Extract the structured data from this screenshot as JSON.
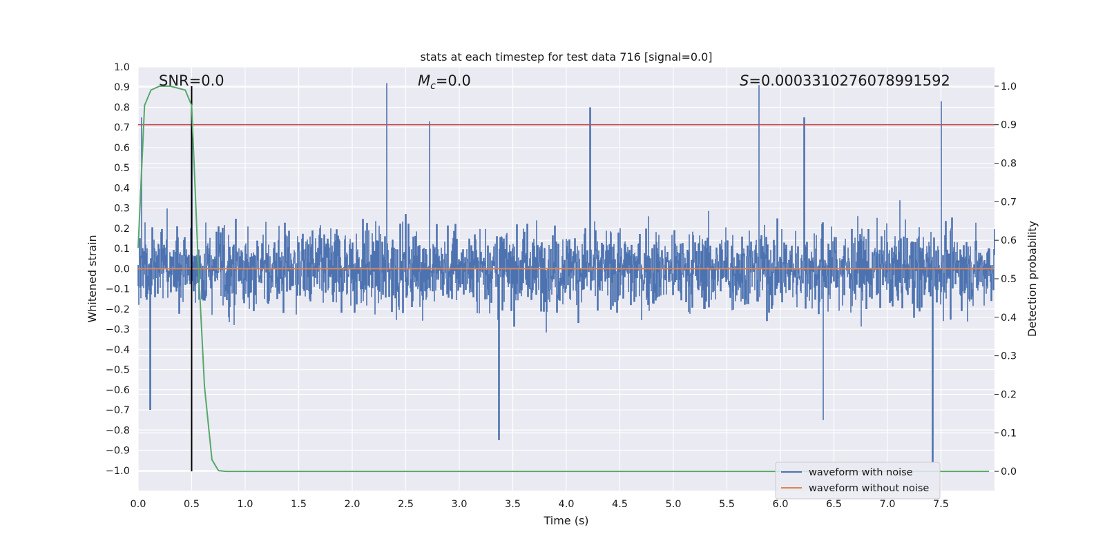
{
  "chart_data": {
    "type": "line",
    "title": "stats at each timestep for test data 716 [signal=0.0]",
    "xlabel": "Time (s)",
    "ylabel": "Whitened strain",
    "y2label": "Detection probability",
    "xlim": [
      0.0,
      8.0
    ],
    "ylim": [
      -1.1,
      1.0
    ],
    "y2lim": [
      -0.05,
      1.05
    ],
    "x_ticks": [
      "0.0",
      "0.5",
      "1.0",
      "1.5",
      "2.0",
      "2.5",
      "3.0",
      "3.5",
      "4.0",
      "4.5",
      "5.0",
      "5.5",
      "6.0",
      "6.5",
      "7.0",
      "7.5"
    ],
    "y_ticks": [
      "1.0",
      "0.9",
      "0.8",
      "0.7",
      "0.6",
      "0.5",
      "0.4",
      "0.3",
      "0.2",
      "0.1",
      "0.0",
      "−0.1",
      "−0.2",
      "−0.3",
      "−0.4",
      "−0.5",
      "−0.6",
      "−0.7",
      "−0.8",
      "−0.9",
      "−1.0"
    ],
    "y2_ticks": [
      "1.0",
      "0.9",
      "0.8",
      "0.7",
      "0.6",
      "0.5",
      "0.4",
      "0.3",
      "0.2",
      "0.1",
      "0.0"
    ],
    "grid": true,
    "annotations": {
      "snr": "SNR=0.0",
      "mc_symbol": "M",
      "mc_sub": "c",
      "mc_value": "=0.0",
      "s_symbol": "S",
      "s_value": "=0.0003310276078991592"
    },
    "threshold": 0.9,
    "marker_time": 0.5,
    "series": [
      {
        "name": "waveform with noise",
        "color": "#4c72b0",
        "description": "whitened noisy strain, approx amplitude ±0.4 with peaks to ±0.9",
        "peaks": [
          {
            "x": 0.03,
            "y": 0.75
          },
          {
            "x": 0.5,
            "y": 0.72
          },
          {
            "x": 2.32,
            "y": 0.92
          },
          {
            "x": 2.72,
            "y": 0.73
          },
          {
            "x": 4.22,
            "y": 0.8
          },
          {
            "x": 5.8,
            "y": 0.91
          },
          {
            "x": 6.22,
            "y": 0.75
          },
          {
            "x": 7.5,
            "y": 0.83
          },
          {
            "x": 0.11,
            "y": -0.7
          },
          {
            "x": 3.37,
            "y": -0.85
          },
          {
            "x": 6.4,
            "y": -0.75
          },
          {
            "x": 7.42,
            "y": -0.96
          }
        ]
      },
      {
        "name": "waveform without noise",
        "color": "#dd8452",
        "x": [
          0.0,
          8.0
        ],
        "y": [
          0.0,
          0.0
        ]
      },
      {
        "name": "detection probability",
        "color": "#55a868",
        "axis": "right",
        "x": [
          0.0,
          0.06,
          0.12,
          0.2,
          0.3,
          0.44,
          0.5,
          0.56,
          0.62,
          0.69,
          0.75,
          0.82,
          1.0,
          8.0
        ],
        "y": [
          0.58,
          0.95,
          0.99,
          1.0,
          1.0,
          0.99,
          0.95,
          0.55,
          0.22,
          0.03,
          0.002,
          0.0,
          0.0,
          0.0
        ]
      }
    ],
    "legend": {
      "position": "bottom-right",
      "entries": [
        {
          "label": "waveform with noise",
          "color": "#4c72b0"
        },
        {
          "label": "waveform without noise",
          "color": "#dd8452"
        }
      ]
    },
    "colors": {
      "plot_bg": "#eaeaf2",
      "grid": "#ffffff",
      "threshold_line": "#c44e52",
      "marker_line": "#000000"
    }
  }
}
